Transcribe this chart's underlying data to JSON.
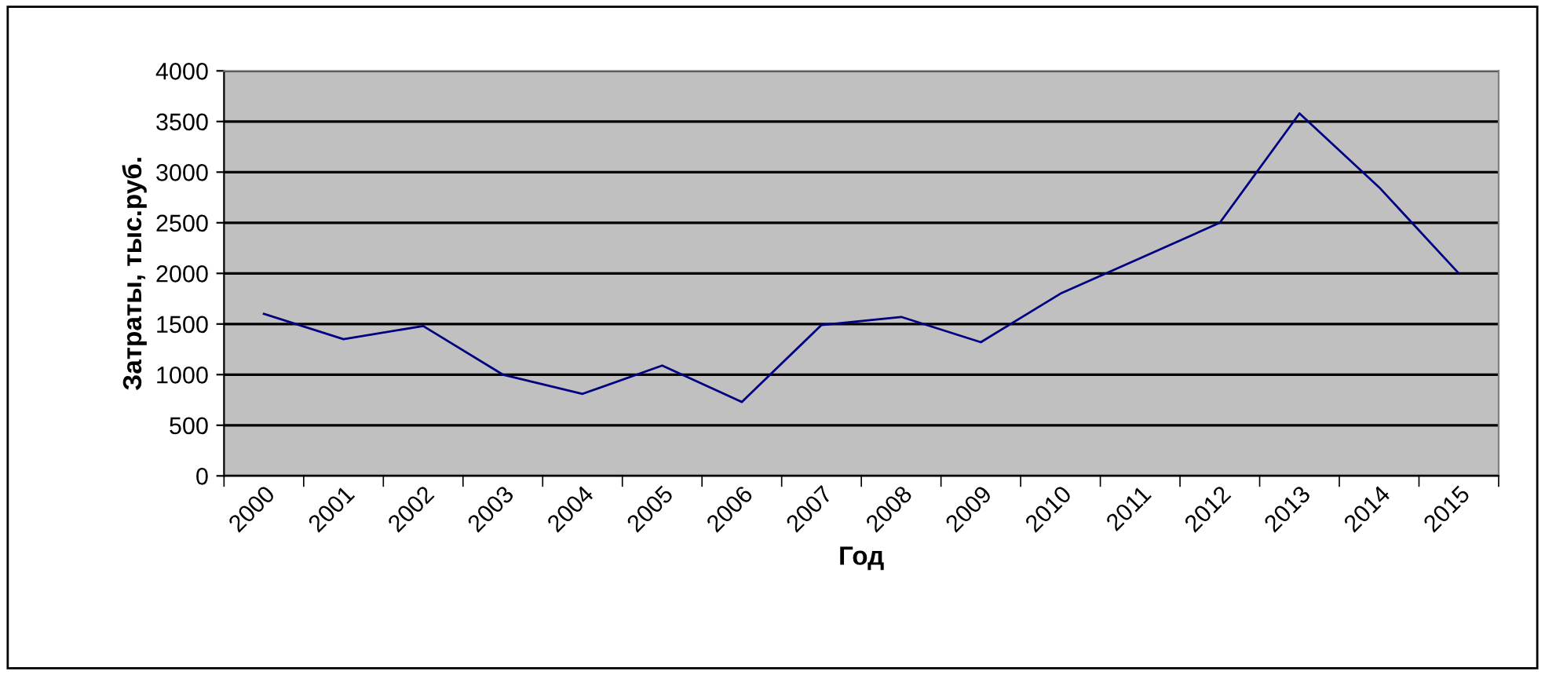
{
  "chart_data": {
    "type": "line",
    "xlabel": "Год",
    "ylabel": "Затраты, тыс.руб.",
    "categories": [
      "2000",
      "2001",
      "2002",
      "2003",
      "2004",
      "2005",
      "2006",
      "2007",
      "2008",
      "2009",
      "2010",
      "2011",
      "2012",
      "2013",
      "2014",
      "2015"
    ],
    "series": [
      {
        "color": "#000080",
        "values": [
          1600,
          1350,
          1480,
          1000,
          810,
          1090,
          730,
          1490,
          1570,
          1320,
          1800,
          2150,
          2500,
          3580,
          2850,
          2000
        ]
      }
    ],
    "ylim": [
      0,
      4000
    ],
    "yticks": [
      0,
      500,
      1000,
      1500,
      2000,
      2500,
      3000,
      3500,
      4000
    ],
    "grid": "y",
    "legend": false,
    "marker": "none",
    "line_style": "solid"
  }
}
